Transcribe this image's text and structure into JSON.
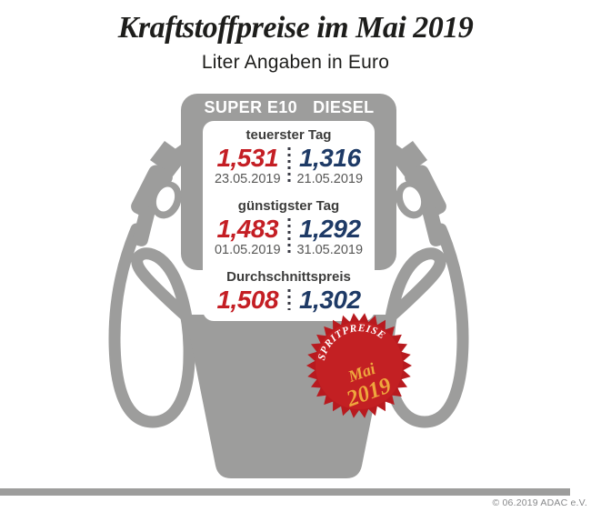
{
  "header": {
    "title": "Kraftstoffpreise im Mai 2019",
    "subtitle": "Liter Angaben in Euro"
  },
  "pump": {
    "fuel_columns": [
      "SUPER E10",
      "DIESEL"
    ],
    "sections": [
      {
        "label": "teuerster Tag",
        "values": [
          {
            "fuel": "SUPER E10",
            "price": "1,531",
            "date": "23.05.2019"
          },
          {
            "fuel": "DIESEL",
            "price": "1,316",
            "date": "21.05.2019"
          }
        ]
      },
      {
        "label": "günstigster Tag",
        "values": [
          {
            "fuel": "SUPER E10",
            "price": "1,483",
            "date": "01.05.2019"
          },
          {
            "fuel": "DIESEL",
            "price": "1,292",
            "date": "31.05.2019"
          }
        ]
      },
      {
        "label": "Durchschnittspreis",
        "values": [
          {
            "fuel": "SUPER E10",
            "price": "1,508"
          },
          {
            "fuel": "DIESEL",
            "price": "1,302"
          }
        ]
      }
    ]
  },
  "badge": {
    "line1": "SPRITPREISE",
    "line2": "Mai",
    "line3": "2019"
  },
  "footer": {
    "copyright": "© 06.2019  ADAC e.V."
  },
  "colors": {
    "pump_gray": "#9d9d9c",
    "super_e10_red": "#c41e24",
    "diesel_blue": "#1e3a66",
    "badge_red": "#c32023",
    "badge_spike_red": "#b81a1f",
    "badge_gold": "#efa73d",
    "label_dark": "#3c3c3b",
    "date_gray": "#575756"
  },
  "chart_data": {
    "type": "table",
    "title": "Kraftstoffpreise im Mai 2019",
    "subtitle": "Liter Angaben in Euro",
    "unit": "Euro pro Liter",
    "columns": [
      "SUPER E10",
      "DIESEL"
    ],
    "rows": [
      {
        "label": "teuerster Tag",
        "super_e10": 1.531,
        "super_e10_date": "23.05.2019",
        "diesel": 1.316,
        "diesel_date": "21.05.2019"
      },
      {
        "label": "günstigster Tag",
        "super_e10": 1.483,
        "super_e10_date": "01.05.2019",
        "diesel": 1.292,
        "diesel_date": "31.05.2019"
      },
      {
        "label": "Durchschnittspreis",
        "super_e10": 1.508,
        "diesel": 1.302
      }
    ]
  }
}
